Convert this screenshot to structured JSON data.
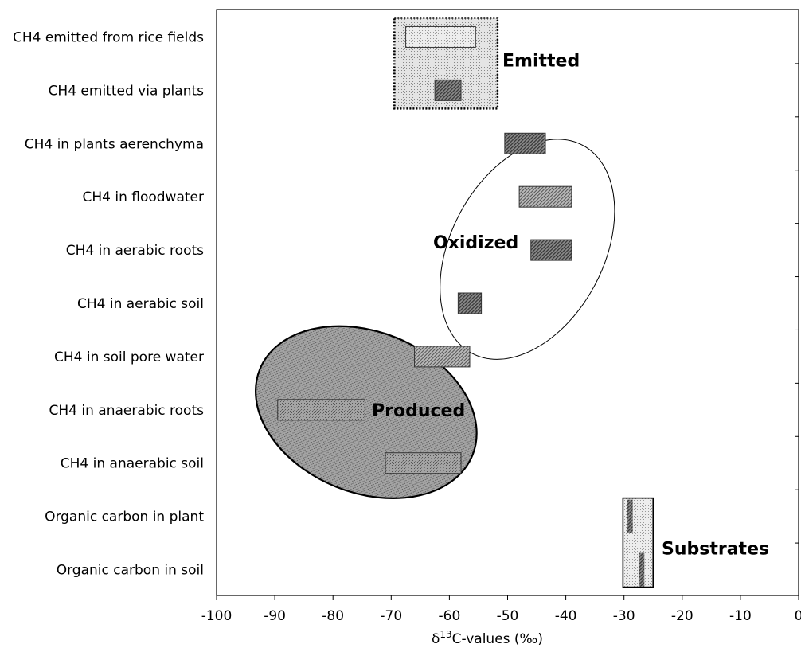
{
  "chart_data": {
    "type": "bar",
    "subtype": "floating-range",
    "xlabel": "δ13C-values (‰)",
    "xlabel_parts": {
      "base": "δ",
      "sup": "13",
      "rest": "C-values (‰)"
    },
    "xlim": [
      -100,
      0
    ],
    "xticks": [
      -100,
      -90,
      -80,
      -70,
      -60,
      -50,
      -40,
      -30,
      -20,
      -10,
      0
    ],
    "tick_labels": [
      "-100",
      "-90",
      "-80",
      "-70",
      "-60",
      "-50",
      "-40",
      "-30",
      "-20",
      "-10",
      "0"
    ],
    "grid": false,
    "categories": [
      "CH4 emitted from rice fields",
      "CH4 emitted via plants",
      "CH4 in plants aerenchyma",
      "CH4 in floodwater",
      "CH4 in aerabic roots",
      "CH4 in aerabic soil",
      "CH4 in soil pore water",
      "CH4 in anaerabic roots",
      "CH4 in anaerabic soil",
      "Organic carbon in plant",
      "Organic carbon in soil"
    ],
    "ranges": [
      {
        "category": "CH4 emitted from rice fields",
        "min": -67.5,
        "max": -55.5,
        "fill": "#dcdcdc"
      },
      {
        "category": "CH4 emitted via plants",
        "min": -62.5,
        "max": -58,
        "fill": "#9a9a9a"
      },
      {
        "category": "CH4 in plants aerenchyma",
        "min": -50.5,
        "max": -43.5,
        "fill": "#7a7a7a"
      },
      {
        "category": "CH4 in floodwater",
        "min": -48,
        "max": -39,
        "fill": "#a8a8a8"
      },
      {
        "category": "CH4 in aerabic roots",
        "min": -46,
        "max": -39,
        "fill": "#7a7a7a"
      },
      {
        "category": "CH4 in aerabic soil",
        "min": -58.5,
        "max": -54.5,
        "fill": "#7a7a7a"
      },
      {
        "category": "CH4 in soil pore water",
        "min": -66,
        "max": -56.5,
        "fill": "#b0b0b0"
      },
      {
        "category": "CH4 in anaerabic roots",
        "min": -89.5,
        "max": -74.5,
        "fill": "#8c8c8c"
      },
      {
        "category": "CH4 in anaerabic soil",
        "min": -71,
        "max": -58,
        "fill": "#8c8c8c"
      },
      {
        "category": "Organic carbon in plant",
        "min": -29.5,
        "max": -28.5,
        "fill": "#7a7a7a"
      },
      {
        "category": "Organic carbon in soil",
        "min": -27.5,
        "max": -26.5,
        "fill": "#7a7a7a"
      }
    ],
    "regions": [
      {
        "label": "Emitted",
        "shape": "dotted-rect",
        "x_range": [
          -70,
          -52
        ],
        "categories": [
          "CH4 emitted from rice fields",
          "CH4 emitted via plants"
        ],
        "fill": "#e2e2e2"
      },
      {
        "label": "Oxidized",
        "shape": "ellipse",
        "categories": [
          "CH4 in plants aerenchyma",
          "CH4 in floodwater",
          "CH4 in aerabic roots",
          "CH4 in aerabic soil",
          "CH4 in soil pore water"
        ],
        "fill": "none"
      },
      {
        "label": "Produced",
        "shape": "ellipse",
        "categories": [
          "CH4 in soil pore water",
          "CH4 in anaerabic roots",
          "CH4 in anaerabic soil"
        ],
        "fill": "#9d9d9d"
      },
      {
        "label": "Substrates",
        "shape": "rect",
        "x_range": [
          -31,
          -25
        ],
        "categories": [
          "Organic carbon in plant",
          "Organic carbon in soil"
        ],
        "fill": "#e8e8e8"
      }
    ]
  }
}
